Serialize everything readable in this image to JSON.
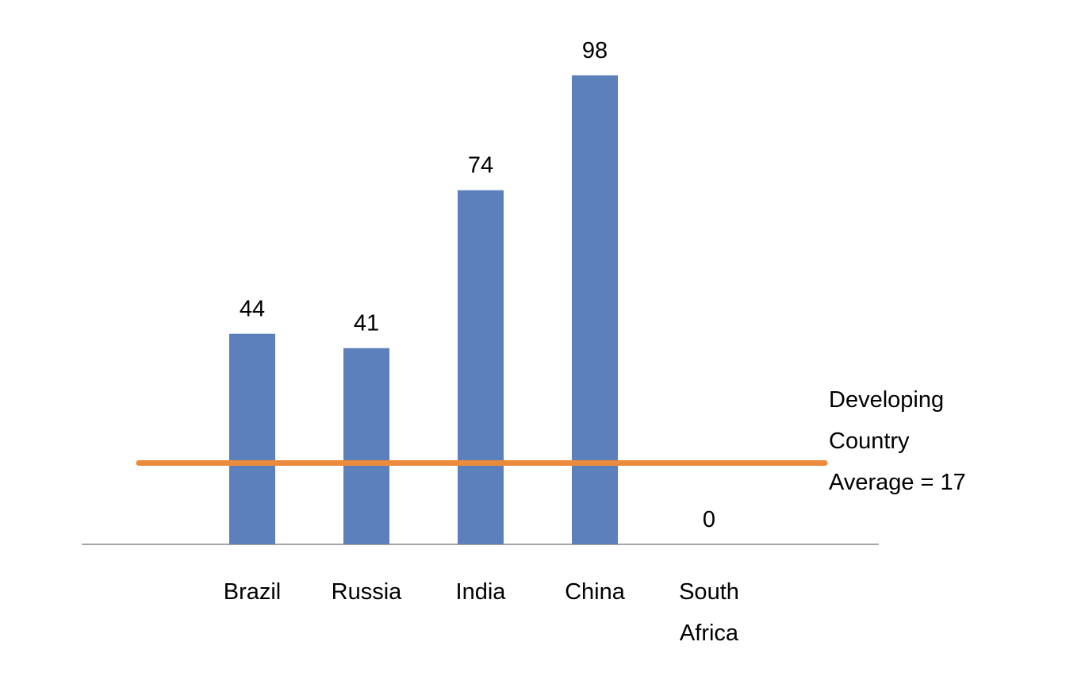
{
  "chart_data": {
    "type": "bar",
    "categories": [
      "Brazil",
      "Russia",
      "India",
      "China",
      "South Africa"
    ],
    "values": [
      44,
      41,
      74,
      98,
      0
    ],
    "color": "#5b80bb",
    "reference_line": {
      "value": 17,
      "color": "#eb8b3c",
      "label_lines": [
        "Developing",
        "Country",
        "Average = 17"
      ]
    }
  }
}
